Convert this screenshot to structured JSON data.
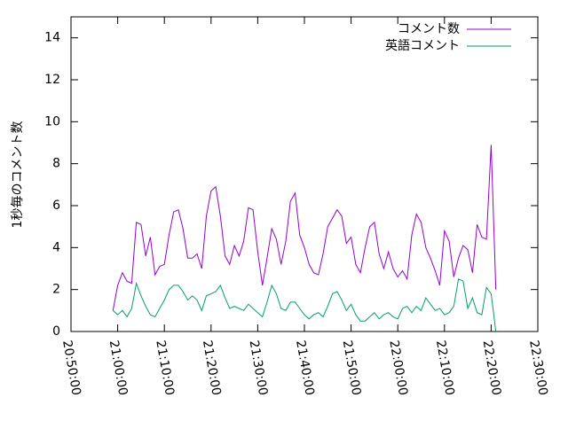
{
  "chart_data": {
    "type": "line",
    "ylabel": "1秒毎のコメント数",
    "x": [
      "20:59:00",
      "21:00:00",
      "21:01:00",
      "21:02:00",
      "21:03:00",
      "21:04:00",
      "21:05:00",
      "21:06:00",
      "21:07:00",
      "21:08:00",
      "21:09:00",
      "21:10:00",
      "21:11:00",
      "21:12:00",
      "21:13:00",
      "21:14:00",
      "21:15:00",
      "21:16:00",
      "21:17:00",
      "21:18:00",
      "21:19:00",
      "21:20:00",
      "21:21:00",
      "21:22:00",
      "21:23:00",
      "21:24:00",
      "21:25:00",
      "21:26:00",
      "21:27:00",
      "21:28:00",
      "21:29:00",
      "21:30:00",
      "21:31:00",
      "21:32:00",
      "21:33:00",
      "21:34:00",
      "21:35:00",
      "21:36:00",
      "21:37:00",
      "21:38:00",
      "21:39:00",
      "21:40:00",
      "21:41:00",
      "21:42:00",
      "21:43:00",
      "21:44:00",
      "21:45:00",
      "21:46:00",
      "21:47:00",
      "21:48:00",
      "21:49:00",
      "21:50:00",
      "21:51:00",
      "21:52:00",
      "21:53:00",
      "21:54:00",
      "21:55:00",
      "21:56:00",
      "21:57:00",
      "21:58:00",
      "21:59:00",
      "22:00:00",
      "22:01:00",
      "22:02:00",
      "22:03:00",
      "22:04:00",
      "22:05:00",
      "22:06:00",
      "22:07:00",
      "22:08:00",
      "22:09:00",
      "22:10:00",
      "22:11:00",
      "22:12:00",
      "22:13:00",
      "22:14:00",
      "22:15:00",
      "22:16:00",
      "22:17:00",
      "22:18:00",
      "22:19:00",
      "22:20:00",
      "22:21:00"
    ],
    "series": [
      {
        "name": "コメント数",
        "color": "#9400d3",
        "values": [
          1.0,
          2.2,
          2.8,
          2.4,
          2.3,
          5.2,
          5.1,
          3.6,
          4.5,
          2.7,
          3.1,
          3.2,
          4.6,
          5.7,
          5.8,
          4.9,
          3.5,
          3.5,
          3.7,
          3.0,
          5.5,
          6.7,
          6.9,
          5.5,
          3.6,
          3.2,
          4.1,
          3.6,
          4.3,
          5.9,
          5.8,
          3.8,
          2.2,
          3.5,
          4.9,
          4.4,
          3.2,
          4.3,
          6.2,
          6.6,
          4.6,
          4.0,
          3.2,
          2.8,
          2.7,
          3.7,
          5.0,
          5.4,
          5.8,
          5.5,
          4.2,
          4.5,
          3.2,
          2.8,
          4.0,
          5.0,
          5.2,
          3.7,
          3.0,
          3.8,
          3.0,
          2.6,
          2.9,
          2.5,
          4.6,
          5.6,
          5.2,
          4.0,
          3.5,
          2.9,
          2.2,
          4.8,
          4.3,
          2.6,
          3.5,
          4.1,
          3.9,
          2.8,
          5.1,
          4.5,
          4.4,
          8.9,
          2.0
        ]
      },
      {
        "name": "英語コメント",
        "color": "#009e73",
        "values": [
          1.0,
          0.8,
          1.0,
          0.7,
          1.1,
          2.3,
          1.7,
          1.2,
          0.8,
          0.7,
          1.1,
          1.5,
          2.0,
          2.2,
          2.2,
          1.9,
          1.5,
          1.7,
          1.5,
          1.0,
          1.7,
          1.8,
          1.9,
          2.2,
          1.6,
          1.1,
          1.2,
          1.1,
          1.0,
          1.3,
          1.1,
          0.9,
          0.7,
          1.4,
          2.2,
          1.8,
          1.1,
          1.0,
          1.4,
          1.4,
          1.1,
          0.8,
          0.6,
          0.8,
          0.9,
          0.7,
          1.2,
          1.8,
          1.9,
          1.5,
          1.0,
          1.3,
          0.8,
          0.5,
          0.5,
          0.7,
          0.9,
          0.6,
          0.8,
          0.9,
          0.7,
          0.6,
          1.1,
          1.2,
          0.9,
          1.2,
          1.0,
          1.6,
          1.3,
          1.0,
          1.1,
          0.8,
          0.9,
          1.2,
          2.5,
          2.4,
          1.1,
          1.6,
          0.9,
          0.8,
          2.1,
          1.8,
          0.0
        ]
      }
    ],
    "xlim": [
      "20:50:00",
      "22:30:00"
    ],
    "xticks": [
      "20:50:00",
      "21:00:00",
      "21:10:00",
      "21:20:00",
      "21:30:00",
      "21:40:00",
      "21:50:00",
      "22:00:00",
      "22:10:00",
      "22:20:00",
      "22:30:00"
    ],
    "ylim": [
      0,
      15
    ],
    "yticks": [
      0,
      2,
      4,
      6,
      8,
      10,
      12,
      14
    ],
    "legend": "top-right"
  }
}
